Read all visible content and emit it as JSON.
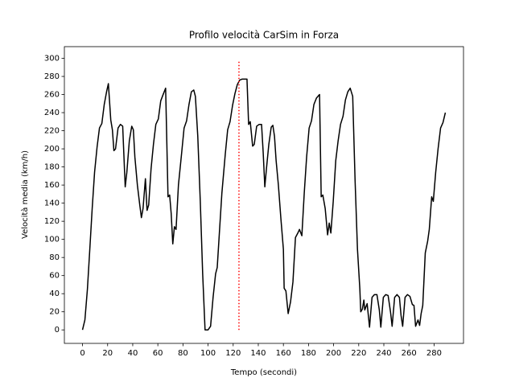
{
  "chart_data": {
    "type": "line",
    "title": "Profilo velocità CarSim in Forza",
    "xlabel": "Tempo (secondi)",
    "ylabel": "Velocità media (km/h)",
    "xlim": [
      -14.45,
      303.45
    ],
    "ylim": [
      -14.9,
      312.9
    ],
    "xticks": [
      0,
      20,
      40,
      60,
      80,
      100,
      120,
      140,
      160,
      180,
      200,
      220,
      240,
      260,
      280
    ],
    "yticks": [
      0,
      20,
      40,
      60,
      80,
      100,
      120,
      140,
      160,
      180,
      200,
      220,
      240,
      260,
      280,
      300
    ],
    "grid": false,
    "series": [
      {
        "color": "#000000",
        "style": "solid",
        "x": [
          0,
          1.9,
          3.9,
          5.8,
          7.7,
          9.6,
          11.6,
          13.5,
          15.4,
          17.3,
          19.3,
          20.6,
          22.5,
          23.8,
          25,
          26.3,
          28.3,
          30.2,
          32,
          33.4,
          34,
          35.3,
          37.3,
          39.2,
          40.5,
          41.7,
          43.7,
          45.6,
          46.9,
          48.2,
          50.1,
          51.4,
          52.7,
          54.6,
          56.5,
          58.4,
          60.4,
          62.3,
          64.2,
          66.2,
          68.1,
          69.4,
          70.6,
          71.9,
          73.2,
          74.5,
          76.4,
          79,
          80.9,
          82.9,
          84.8,
          86.7,
          88.6,
          89.9,
          91.8,
          93.8,
          95.7,
          97.6,
          100,
          102,
          104,
          106,
          107.3,
          109,
          111,
          113.7,
          115.6,
          117.5,
          119.5,
          121.4,
          123.3,
          125.2,
          127,
          131,
          132.3,
          133.6,
          135.5,
          136.8,
          138.7,
          140.7,
          142.6,
          143.9,
          145.2,
          146.5,
          148.4,
          150.3,
          151.6,
          152.9,
          154.2,
          156,
          158,
          160,
          160.6,
          162,
          163.8,
          165.7,
          167.6,
          169.6,
          171.5,
          172.8,
          174.7,
          176.6,
          178.5,
          180.5,
          182.4,
          184.3,
          186.3,
          188.8,
          190.1,
          191.4,
          193.3,
          195.2,
          196.5,
          197.8,
          199.7,
          201.7,
          203.6,
          205.5,
          207.5,
          209.4,
          211.3,
          213.2,
          215.2,
          217.1,
          219,
          220.9,
          221.6,
          222.9,
          224.1,
          224.8,
          226.7,
          228.6,
          230.6,
          232.5,
          234.5,
          236.4,
          237.6,
          239.6,
          241.5,
          243.4,
          245.3,
          246.6,
          248.6,
          250.5,
          252.4,
          253.7,
          255,
          256.9,
          258.8,
          260.8,
          262.7,
          264,
          265.3,
          267.2,
          268.5,
          269.7,
          271,
          273,
          274.9,
          276.2,
          278.1,
          279.4,
          281.3,
          283.2,
          285.2,
          287.1,
          289
        ],
        "values": [
          0,
          11,
          45,
          89,
          134,
          174,
          202,
          223,
          228,
          249,
          264,
          272,
          232,
          221,
          198,
          200,
          223,
          227,
          225,
          178,
          158,
          174,
          209,
          225,
          221,
          191,
          160,
          138,
          124,
          134,
          167,
          132,
          138,
          178,
          205,
          227,
          233,
          253,
          260,
          267,
          147,
          149,
          129,
          95,
          114,
          111,
          160,
          196,
          223,
          231,
          249,
          263,
          265,
          258,
          214,
          142,
          62,
          0,
          0,
          4,
          36,
          62,
          69,
          107,
          151,
          194,
          221,
          230,
          248,
          261,
          271,
          276,
          277,
          277,
          227,
          230,
          203,
          205,
          225,
          227,
          227,
          196,
          158,
          178,
          205,
          224,
          226,
          214,
          187,
          160,
          123,
          89,
          46,
          43,
          18,
          31,
          53,
          102,
          107,
          111,
          104,
          151,
          191,
          223,
          231,
          249,
          256,
          260,
          147,
          149,
          134,
          105,
          118,
          107,
          142,
          187,
          209,
          227,
          236,
          254,
          263,
          267,
          258,
          165,
          89,
          45,
          20,
          23,
          33,
          22,
          29,
          3,
          36,
          39,
          39,
          22,
          3,
          36,
          39,
          38,
          20,
          4,
          36,
          39,
          36,
          16,
          4,
          36,
          39,
          37,
          28,
          27,
          4,
          11,
          5,
          18,
          27,
          85,
          98,
          111,
          147,
          142,
          174,
          200,
          223,
          229,
          240
        ]
      },
      {
        "color": "#ff0000",
        "style": "dotted",
        "x": [
          124.6,
          124.6
        ],
        "values": [
          0,
          297
        ]
      }
    ]
  }
}
